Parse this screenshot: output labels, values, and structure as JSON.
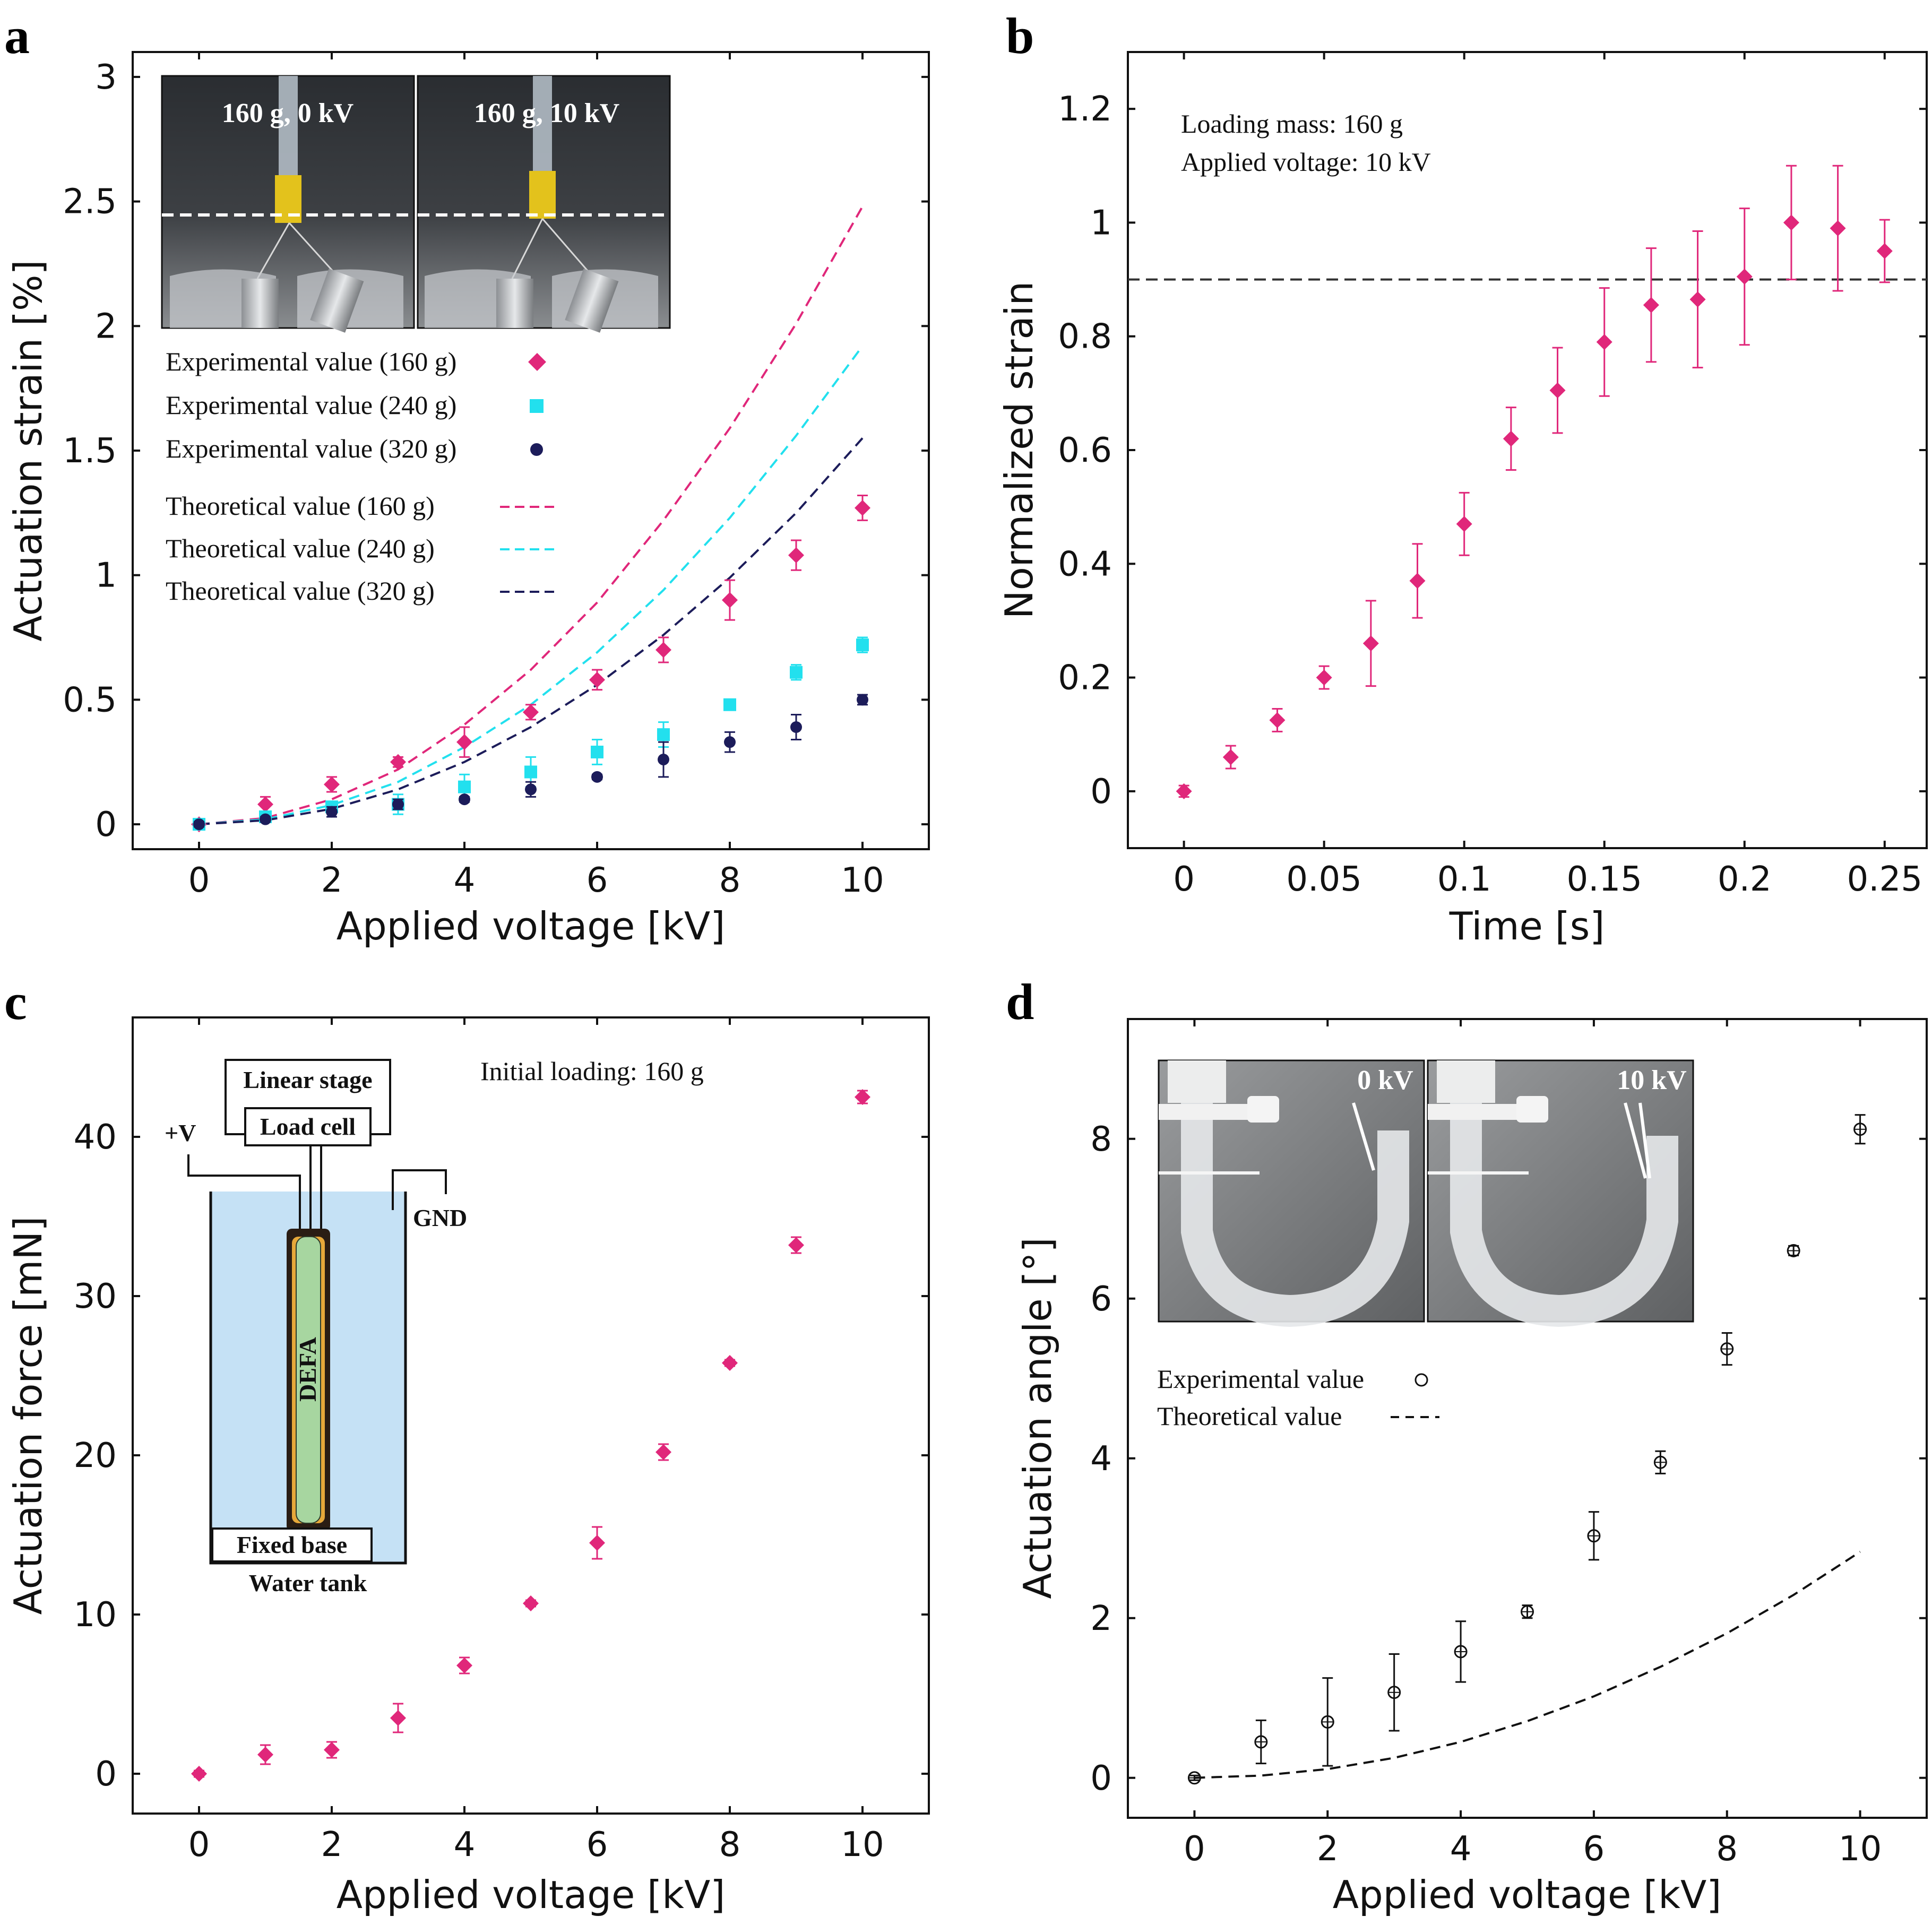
{
  "figure": {
    "panels": {
      "a": {
        "label": "a",
        "photo_left_caption": "160 g, 0 kV",
        "photo_right_caption": "160 g, 10 kV"
      },
      "b": {
        "label": "b"
      },
      "c": {
        "label": "c",
        "schematic": {
          "stage": "Linear stage",
          "load": "Load cell",
          "pos": "+V",
          "gnd": "GND",
          "actuator": "DEFA",
          "base": "Fixed base",
          "tank": "Water tank"
        }
      },
      "d": {
        "label": "d",
        "photo_left_caption": "0 kV",
        "photo_right_caption": "10 kV"
      }
    },
    "colors": {
      "pink": "#e0277a",
      "cyan": "#22e0ee",
      "navy": "#1c1c5a",
      "black": "#111111"
    }
  },
  "chart_data": [
    {
      "id": "a",
      "type": "scatter",
      "xlabel": "Applied voltage [kV]",
      "ylabel": "Actuation strain [%]",
      "xlim": [
        -1,
        11
      ],
      "ylim": [
        -0.1,
        3.1
      ],
      "xticks": [
        "0",
        "2",
        "4",
        "6",
        "8",
        "10"
      ],
      "yticks": [
        "0",
        "0.5",
        "1",
        "1.5",
        "2",
        "2.5",
        "3"
      ],
      "legend": [
        "Experimental value (160 g)",
        "Experimental value (240 g)",
        "Experimental value (320 g)",
        "Theoretical value (160 g)",
        "Theoretical value (240 g)",
        "Theoretical value (320 g)"
      ],
      "x": [
        0,
        1,
        2,
        3,
        4,
        5,
        6,
        7,
        8,
        9,
        10
      ],
      "series": [
        {
          "name": "Experimental value (160 g)",
          "marker": "diamond",
          "color": "#e0277a",
          "values": [
            0,
            0.08,
            0.16,
            0.25,
            0.33,
            0.45,
            0.58,
            0.7,
            0.9,
            1.08,
            1.27
          ],
          "errors": [
            0.02,
            0.03,
            0.03,
            0.02,
            0.06,
            0.03,
            0.04,
            0.05,
            0.08,
            0.06,
            0.05
          ]
        },
        {
          "name": "Experimental value (240 g)",
          "marker": "square",
          "color": "#22e0ee",
          "values": [
            0,
            0.03,
            0.07,
            0.08,
            0.15,
            0.21,
            0.29,
            0.36,
            0.48,
            0.61,
            0.72
          ],
          "errors": [
            0.01,
            0.02,
            0.02,
            0.04,
            0.05,
            0.06,
            0.05,
            0.05,
            0.02,
            0.03,
            0.03
          ]
        },
        {
          "name": "Experimental value (320 g)",
          "marker": "circle",
          "color": "#1c1c5a",
          "values": [
            0,
            0.02,
            0.05,
            0.08,
            0.1,
            0.14,
            0.19,
            0.26,
            0.33,
            0.39,
            0.5
          ],
          "errors": [
            0.01,
            0.01,
            0.02,
            0.02,
            0.01,
            0.03,
            0.01,
            0.07,
            0.04,
            0.05,
            0.02
          ]
        },
        {
          "name": "Theoretical value (160 g)",
          "line": "dashed",
          "color": "#e0277a",
          "values": [
            0,
            0.025,
            0.1,
            0.22,
            0.4,
            0.62,
            0.89,
            1.22,
            1.59,
            2.01,
            2.48
          ]
        },
        {
          "name": "Theoretical value (240 g)",
          "line": "dashed",
          "color": "#22e0ee",
          "values": [
            0,
            0.02,
            0.077,
            0.17,
            0.31,
            0.48,
            0.69,
            0.94,
            1.23,
            1.56,
            1.92
          ]
        },
        {
          "name": "Theoretical value (320 g)",
          "line": "dashed",
          "color": "#1c1c5a",
          "values": [
            0,
            0.016,
            0.062,
            0.14,
            0.25,
            0.39,
            0.56,
            0.76,
            0.99,
            1.25,
            1.55
          ]
        }
      ]
    },
    {
      "id": "b",
      "type": "scatter",
      "xlabel": "Time [s]",
      "ylabel": "Normalized strain",
      "xlim": [
        -0.02,
        0.265
      ],
      "ylim": [
        -0.1,
        1.3
      ],
      "xticks": [
        "0",
        "0.05",
        "0.1",
        "0.15",
        "0.2",
        "0.25"
      ],
      "yticks": [
        "0",
        "0.2",
        "0.4",
        "0.6",
        "0.8",
        "1",
        "1.2"
      ],
      "annotations": [
        "Loading mass: 160 g",
        "Applied voltage: 10 kV"
      ],
      "reference_line": 0.9,
      "x": [
        0,
        0.0167,
        0.0333,
        0.05,
        0.0667,
        0.0833,
        0.1,
        0.1167,
        0.1333,
        0.15,
        0.1667,
        0.1833,
        0.2,
        0.2167,
        0.2333,
        0.25
      ],
      "series": [
        {
          "name": "Normalized strain",
          "marker": "diamond",
          "color": "#e0277a",
          "values": [
            0,
            0.06,
            0.125,
            0.2,
            0.26,
            0.37,
            0.47,
            0.62,
            0.705,
            0.79,
            0.855,
            0.865,
            0.905,
            1.0,
            0.99,
            0.95
          ],
          "errors": [
            0.01,
            0.02,
            0.02,
            0.02,
            0.075,
            0.065,
            0.055,
            0.055,
            0.075,
            0.095,
            0.1,
            0.12,
            0.12,
            0.1,
            0.11,
            0.055
          ]
        }
      ]
    },
    {
      "id": "c",
      "type": "scatter",
      "xlabel": "Applied voltage [kV]",
      "ylabel": "Actuation force [mN]",
      "xlim": [
        -1,
        11
      ],
      "ylim": [
        -2.5,
        47.5
      ],
      "xticks": [
        "0",
        "2",
        "4",
        "6",
        "8",
        "10"
      ],
      "yticks": [
        "0",
        "10",
        "20",
        "30",
        "40"
      ],
      "annotations": [
        "Initial loading: 160 g"
      ],
      "x": [
        0,
        1,
        2,
        3,
        4,
        5,
        6,
        7,
        8,
        9,
        10
      ],
      "series": [
        {
          "name": "Actuation force",
          "marker": "diamond",
          "color": "#e0277a",
          "values": [
            0,
            1.2,
            1.5,
            3.5,
            6.8,
            10.7,
            14.5,
            20.2,
            25.8,
            33.2,
            42.5
          ],
          "errors": [
            0.2,
            0.6,
            0.5,
            0.9,
            0.5,
            0.2,
            1.0,
            0.5,
            0.2,
            0.5,
            0.4
          ]
        }
      ]
    },
    {
      "id": "d",
      "type": "scatter",
      "xlabel": "Applied voltage [kV]",
      "ylabel": "Actuation angle [°]",
      "xlim": [
        -1,
        11
      ],
      "ylim": [
        -0.5,
        9.5
      ],
      "xticks": [
        "0",
        "2",
        "4",
        "6",
        "8",
        "10"
      ],
      "yticks": [
        "0",
        "2",
        "4",
        "6",
        "8"
      ],
      "legend": [
        "Experimental value",
        "Theoretical value"
      ],
      "x": [
        0,
        1,
        2,
        3,
        4,
        5,
        6,
        7,
        8,
        9,
        10
      ],
      "series": [
        {
          "name": "Experimental value",
          "marker": "open-circle",
          "color": "#111111",
          "values": [
            0,
            0.45,
            0.7,
            1.07,
            1.58,
            2.08,
            3.03,
            3.95,
            5.37,
            6.6,
            8.12
          ],
          "errors": [
            0.03,
            0.27,
            0.55,
            0.48,
            0.38,
            0.08,
            0.3,
            0.14,
            0.2,
            0.06,
            0.18
          ]
        },
        {
          "name": "Theoretical value",
          "line": "dashed",
          "color": "#111111",
          "values": [
            0,
            0.028,
            0.11,
            0.25,
            0.45,
            0.71,
            1.02,
            1.39,
            1.81,
            2.29,
            2.83
          ]
        }
      ]
    }
  ]
}
